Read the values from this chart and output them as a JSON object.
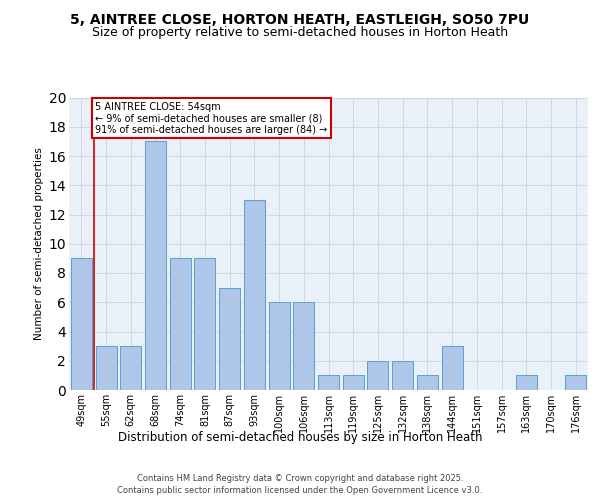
{
  "title": "5, AINTREE CLOSE, HORTON HEATH, EASTLEIGH, SO50 7PU",
  "subtitle": "Size of property relative to semi-detached houses in Horton Heath",
  "xlabel": "Distribution of semi-detached houses by size in Horton Heath",
  "ylabel": "Number of semi-detached properties",
  "categories": [
    "49sqm",
    "55sqm",
    "62sqm",
    "68sqm",
    "74sqm",
    "81sqm",
    "87sqm",
    "93sqm",
    "100sqm",
    "106sqm",
    "113sqm",
    "119sqm",
    "125sqm",
    "132sqm",
    "138sqm",
    "144sqm",
    "151sqm",
    "157sqm",
    "163sqm",
    "170sqm",
    "176sqm"
  ],
  "values": [
    9,
    3,
    3,
    17,
    9,
    9,
    7,
    13,
    6,
    6,
    1,
    1,
    2,
    2,
    1,
    3,
    0,
    0,
    1,
    0,
    1
  ],
  "bar_color": "#aec6e8",
  "bar_edge_color": "#5a9fd4",
  "annotation_text": "5 AINTREE CLOSE: 54sqm\n← 9% of semi-detached houses are smaller (8)\n91% of semi-detached houses are larger (84) →",
  "annotation_box_color": "#ffffff",
  "annotation_box_edge_color": "#cc0000",
  "highlight_line_color": "#cc0000",
  "grid_color": "#d0d8e8",
  "background_color": "#eaf0f8",
  "ylim": [
    0,
    20
  ],
  "yticks": [
    0,
    2,
    4,
    6,
    8,
    10,
    12,
    14,
    16,
    18,
    20
  ],
  "footer": "Contains HM Land Registry data © Crown copyright and database right 2025.\nContains public sector information licensed under the Open Government Licence v3.0.",
  "title_fontsize": 10,
  "subtitle_fontsize": 9,
  "xlabel_fontsize": 8.5,
  "ylabel_fontsize": 7.5,
  "tick_fontsize": 7,
  "footer_fontsize": 6,
  "annotation_fontsize": 7
}
